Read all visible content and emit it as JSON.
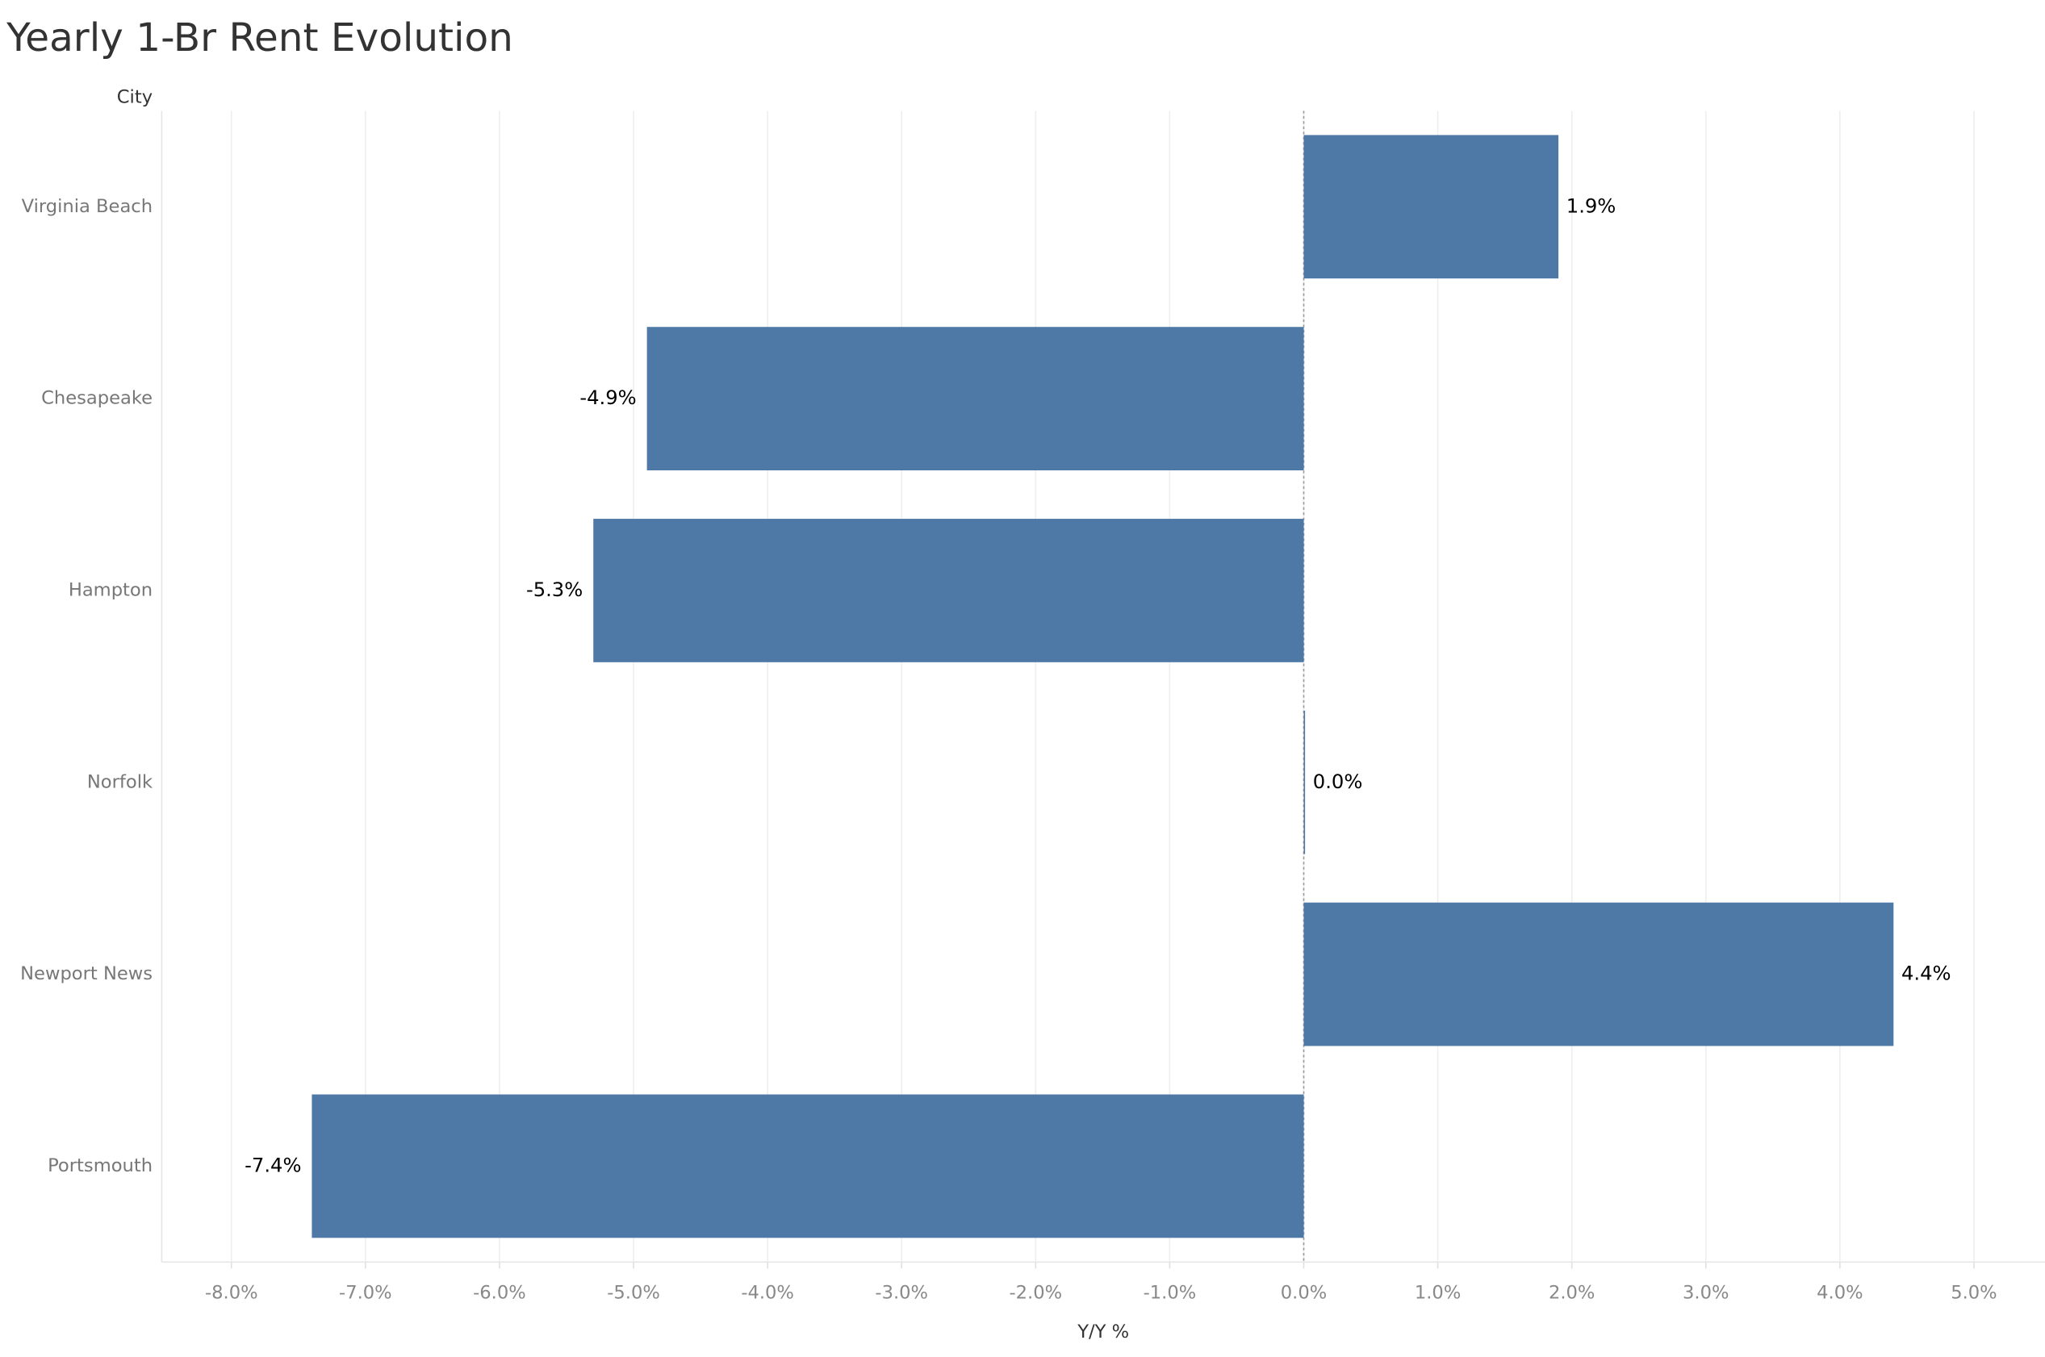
{
  "chart_data": {
    "type": "bar",
    "orientation": "horizontal",
    "title": "Yearly 1-Br Rent Evolution",
    "y_axis_label": "City",
    "x_axis_label": "Y/Y %",
    "categories": [
      "Virginia Beach",
      "Chesapeake",
      "Hampton",
      "Norfolk",
      "Newport News",
      "Portsmouth"
    ],
    "values": [
      1.9,
      -4.9,
      -5.3,
      0.0,
      4.4,
      -7.4
    ],
    "value_labels": [
      "1.9%",
      "-4.9%",
      "-5.3%",
      "0.0%",
      "4.4%",
      "-7.4%"
    ],
    "color": "#4e79a7",
    "xlim": [
      -8.52,
      5.53
    ],
    "xticks": [
      {
        "value": -8,
        "label": "-8.0%"
      },
      {
        "value": -7,
        "label": "-7.0%"
      },
      {
        "value": -6,
        "label": "-6.0%"
      },
      {
        "value": -5,
        "label": "-5.0%"
      },
      {
        "value": -4,
        "label": "-4.0%"
      },
      {
        "value": -3,
        "label": "-3.0%"
      },
      {
        "value": -2,
        "label": "-2.0%"
      },
      {
        "value": -1,
        "label": "-1.0%"
      },
      {
        "value": 0,
        "label": "0.0%"
      },
      {
        "value": 1,
        "label": "1.0%"
      },
      {
        "value": 2,
        "label": "2.0%"
      },
      {
        "value": 3,
        "label": "3.0%"
      },
      {
        "value": 4,
        "label": "4.0%"
      },
      {
        "value": 5,
        "label": "5.0%"
      }
    ],
    "grid": true
  }
}
